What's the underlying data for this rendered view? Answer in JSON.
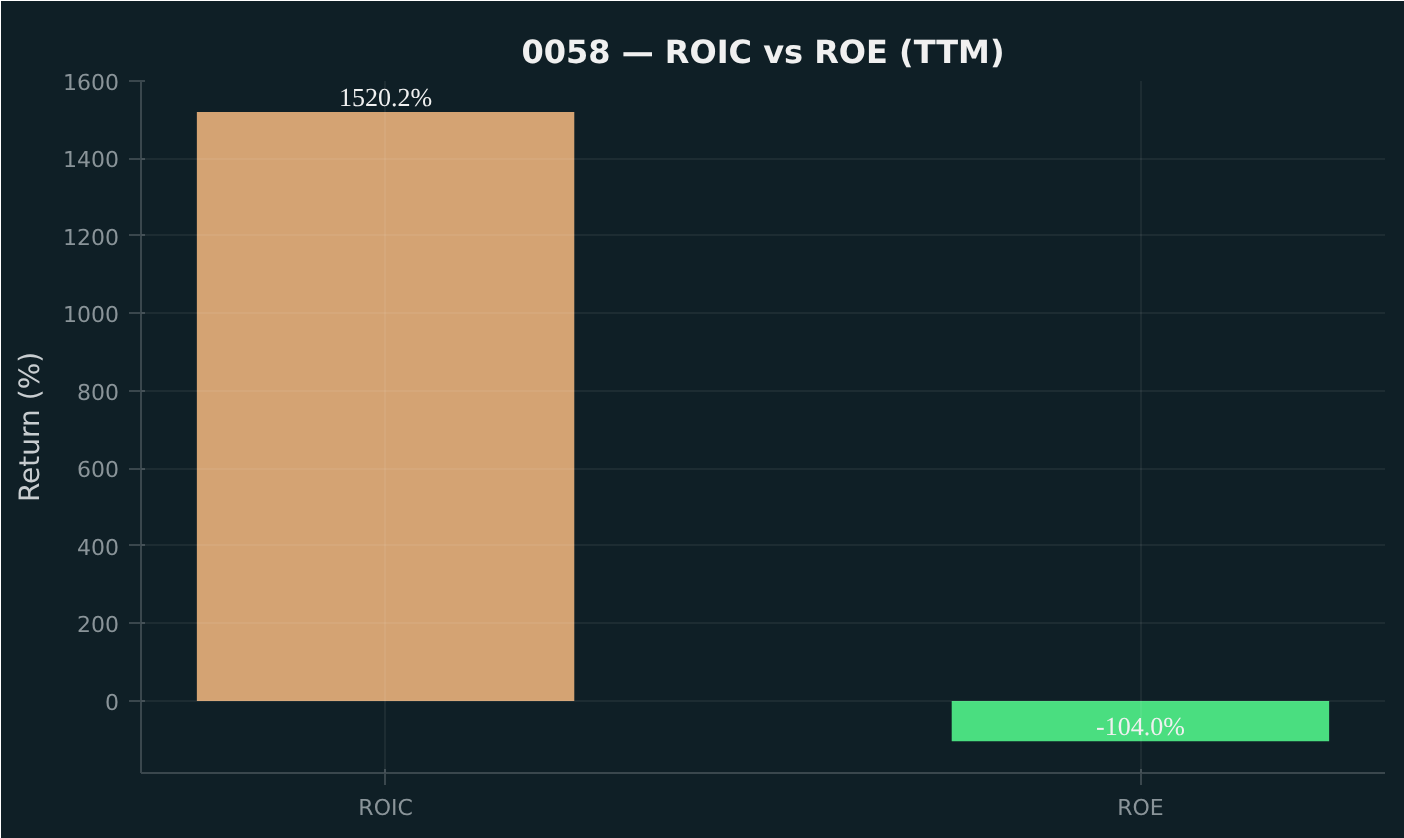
{
  "chart_data": {
    "type": "bar",
    "title": "0058 — ROIC vs ROE (TTM)",
    "ylabel": "Return (%)",
    "categories": [
      "ROIC",
      "ROE"
    ],
    "values": [
      1520.2,
      -104.0
    ],
    "colors": [
      "#d4a373",
      "#4ade80"
    ],
    "value_labels": [
      "1520.2%",
      "-104.0%"
    ],
    "ylim": [
      -186,
      1600
    ],
    "yticks": [
      0,
      200,
      400,
      600,
      800,
      1000,
      1200,
      1400,
      1600
    ],
    "grid": true
  }
}
